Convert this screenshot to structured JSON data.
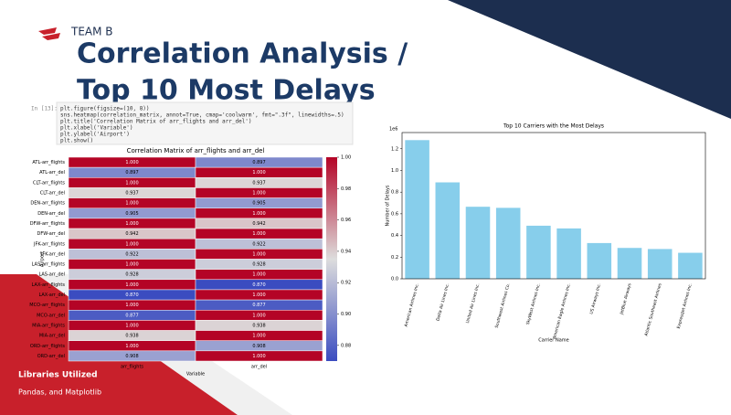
{
  "header": {
    "team": "TEAM B",
    "title_lines": [
      "Correlation Analysis /",
      "Top 10 Most Delays"
    ]
  },
  "code": {
    "prompt": "In [13]:",
    "lines": [
      "plt.figure(figsize=(10, 8))",
      "sns.heatmap(correlation_matrix, annot=True, cmap='coolwarm', fmt=\".3f\", linewidths=.5)",
      "plt.title('Correlation Matrix of arr_flights and arr_del')",
      "plt.xlabel('Variable')",
      "plt.ylabel('Airport')",
      "plt.show()"
    ]
  },
  "footer": {
    "heading": "Libraries Utilized",
    "text": "Pandas, and Matplotlib"
  },
  "chart_data": [
    {
      "type": "heatmap",
      "title": "Correlation Matrix of arr_flights and arr_del",
      "x_label": "Variable",
      "y_label": "Airport",
      "cmap": "coolwarm",
      "columns": [
        "arr_flights",
        "arr_del"
      ],
      "rows": [
        "ATL-arr_flights",
        "ATL-arr_del",
        "CLT-arr_flights",
        "CLT-arr_del",
        "DEN-arr_flights",
        "DEN-arr_del",
        "DFW-arr_flights",
        "DFW-arr_del",
        "JFK-arr_flights",
        "JFK-arr_del",
        "LAS-arr_flights",
        "LAS-arr_del",
        "LAX-arr_flights",
        "LAX-arr_del",
        "MCO-arr_flights",
        "MCO-arr_del",
        "MIA-arr_flights",
        "MIA-arr_del",
        "ORD-arr_flights",
        "ORD-arr_del"
      ],
      "values": [
        [
          1,
          0.897
        ],
        [
          0.897,
          1
        ],
        [
          1,
          0.937
        ],
        [
          0.937,
          1
        ],
        [
          1,
          0.905
        ],
        [
          0.905,
          1
        ],
        [
          1,
          0.942
        ],
        [
          0.942,
          1
        ],
        [
          1,
          0.922
        ],
        [
          0.922,
          1
        ],
        [
          1,
          0.928
        ],
        [
          0.928,
          1
        ],
        [
          1,
          0.87
        ],
        [
          0.87,
          1
        ],
        [
          1,
          0.877
        ],
        [
          0.877,
          1
        ],
        [
          1,
          0.938
        ],
        [
          0.938,
          1
        ],
        [
          1,
          0.908
        ],
        [
          0.908,
          1
        ]
      ],
      "value_labels": [
        [
          "1.000",
          "0.897"
        ],
        [
          "0.897",
          "1.000"
        ],
        [
          "1.000",
          "0.937"
        ],
        [
          "0.937",
          "1.000"
        ],
        [
          "1.000",
          "0.905"
        ],
        [
          "0.905",
          "1.000"
        ],
        [
          "1.000",
          "0.942"
        ],
        [
          "0.942",
          "1.000"
        ],
        [
          "1.000",
          "0.922"
        ],
        [
          "0.922",
          "1.000"
        ],
        [
          "1.000",
          "0.928"
        ],
        [
          "0.928",
          "1.000"
        ],
        [
          "1.000",
          "0.870"
        ],
        [
          "0.870",
          "1.000"
        ],
        [
          "1.000",
          "0.877"
        ],
        [
          "0.877",
          "1.000"
        ],
        [
          "1.000",
          "0.938"
        ],
        [
          "0.938",
          "1.000"
        ],
        [
          "1.000",
          "0.908"
        ],
        [
          "0.908",
          "1.000"
        ]
      ],
      "zlim": [
        0.87,
        1
      ],
      "zticks": [
        0.88,
        {
          "value": 0.9,
          "label": "0.90"
        },
        0.92,
        0.94,
        0.96,
        0.98,
        {
          "value": 1,
          "label": "1.00"
        }
      ]
    },
    {
      "type": "bar",
      "title": "Top 10 Carriers with the Most Delays",
      "x_label": "Carrier Name",
      "y_label": "Number of Delays",
      "y_offset_label": "1e6",
      "color": "#87ceeb",
      "categories": [
        "American Airlines Inc.",
        "Delta Air Lines Inc.",
        "United Air Lines Inc.",
        "Southwest Airlines Co.",
        "SkyWest Airlines Inc.",
        "American Eagle Airlines Inc.",
        "US Airways Inc.",
        "JetBlue Airways",
        "Atlantic Southeast Airlines",
        "ExpressJet Airlines Inc."
      ],
      "values": [
        1.28,
        0.89,
        0.665,
        0.655,
        0.49,
        0.465,
        0.33,
        0.285,
        0.275,
        0.24
      ],
      "ylim": [
        0,
        1.35
      ],
      "yticks": [
        {
          "value": 0,
          "label": "0.0"
        },
        0.2,
        0.4,
        0.6,
        0.8,
        {
          "value": 1,
          "label": "1.0"
        },
        1.2
      ]
    }
  ]
}
